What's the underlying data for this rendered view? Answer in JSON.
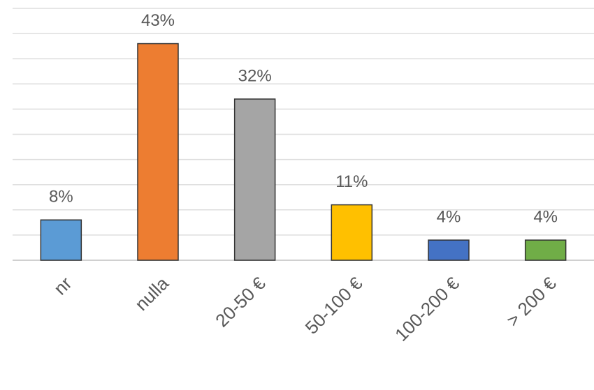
{
  "chart_data": {
    "type": "bar",
    "categories": [
      "nr",
      "nulla",
      "20-50 €",
      "50-100 €",
      "100-200 €",
      "> 200 €"
    ],
    "values": [
      8,
      43,
      32,
      11,
      4,
      4
    ],
    "value_labels": [
      "8%",
      "43%",
      "32%",
      "11%",
      "4%",
      "4%"
    ],
    "colors": [
      "#5b9bd5",
      "#ed7d31",
      "#a5a5a5",
      "#ffc000",
      "#4472c4",
      "#70ad47"
    ],
    "ylim": [
      0,
      50
    ],
    "yticks": [
      0,
      5,
      10,
      15,
      20,
      25,
      30,
      35,
      40,
      45,
      50
    ],
    "grid": true
  }
}
